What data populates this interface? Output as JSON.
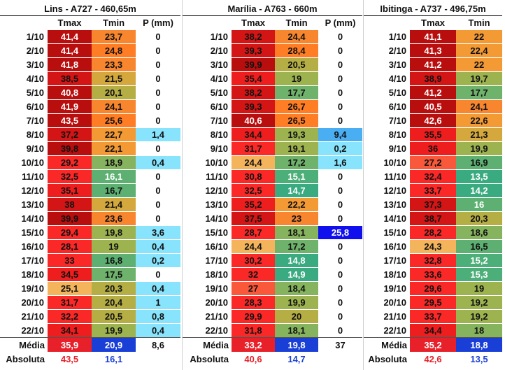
{
  "colors": {
    "tmax_scale": [
      "#f4b05a",
      "#fb2a2a",
      "#d81414",
      "#b80d0d",
      "#c0191a"
    ],
    "tmin_scale": [
      "#3fae79",
      "#6fb26c",
      "#93b455",
      "#b7a840",
      "#e9a23a",
      "#f6812e",
      "#ff7e24"
    ],
    "precip_light": "#88e4fd",
    "precip_mid": "#4aaef2",
    "precip_high": "#1010f0",
    "media_tmax": "#e8202a",
    "media_tmin": "#1a3fd6"
  },
  "stations": [
    {
      "title": "Lins - A727 - 460,65m",
      "headers": [
        "Tmax",
        "Tmin",
        "P (mm)"
      ],
      "rows": [
        {
          "date": "1/10",
          "tmax": "41,4",
          "tmin": "23,7",
          "p": "0"
        },
        {
          "date": "2/10",
          "tmax": "41,4",
          "tmin": "24,8",
          "p": "0"
        },
        {
          "date": "3/10",
          "tmax": "41,8",
          "tmin": "23,3",
          "p": "0"
        },
        {
          "date": "4/10",
          "tmax": "38,5",
          "tmin": "21,5",
          "p": "0"
        },
        {
          "date": "5/10",
          "tmax": "40,8",
          "tmin": "20,1",
          "p": "0"
        },
        {
          "date": "6/10",
          "tmax": "41,9",
          "tmin": "24,1",
          "p": "0"
        },
        {
          "date": "7/10",
          "tmax": "43,5",
          "tmin": "25,6",
          "p": "0"
        },
        {
          "date": "8/10",
          "tmax": "37,2",
          "tmin": "22,7",
          "p": "1,4"
        },
        {
          "date": "9/10",
          "tmax": "39,8",
          "tmin": "22,1",
          "p": "0"
        },
        {
          "date": "10/10",
          "tmax": "29,2",
          "tmin": "18,9",
          "p": "0,4"
        },
        {
          "date": "11/10",
          "tmax": "32,5",
          "tmin": "16,1",
          "p": "0"
        },
        {
          "date": "12/10",
          "tmax": "35,1",
          "tmin": "16,7",
          "p": "0"
        },
        {
          "date": "13/10",
          "tmax": "38",
          "tmin": "21,4",
          "p": "0"
        },
        {
          "date": "14/10",
          "tmax": "39,9",
          "tmin": "23,6",
          "p": "0"
        },
        {
          "date": "15/10",
          "tmax": "29,4",
          "tmin": "19,8",
          "p": "3,6"
        },
        {
          "date": "16/10",
          "tmax": "28,1",
          "tmin": "19",
          "p": "0,4"
        },
        {
          "date": "17/10",
          "tmax": "33",
          "tmin": "16,8",
          "p": "0,2"
        },
        {
          "date": "18/10",
          "tmax": "34,5",
          "tmin": "17,5",
          "p": "0"
        },
        {
          "date": "19/10",
          "tmax": "25,1",
          "tmin": "20,3",
          "p": "0,4"
        },
        {
          "date": "20/10",
          "tmax": "31,7",
          "tmin": "20,4",
          "p": "1"
        },
        {
          "date": "21/10",
          "tmax": "32,2",
          "tmin": "20,5",
          "p": "0,8"
        },
        {
          "date": "22/10",
          "tmax": "34,1",
          "tmin": "19,9",
          "p": "0,4"
        }
      ],
      "media_label": "Média",
      "media": {
        "tmax": "35,9",
        "tmin": "20,9",
        "p": "8,6"
      },
      "abs_label": "Absoluta",
      "abs": {
        "tmax": "43,5",
        "tmin": "16,1"
      }
    },
    {
      "title": "Marília - A763 - 660m",
      "headers": [
        "Tmax",
        "Tmin",
        "P (mm)"
      ],
      "rows": [
        {
          "date": "1/10",
          "tmax": "38,2",
          "tmin": "24,4",
          "p": "0"
        },
        {
          "date": "2/10",
          "tmax": "39,3",
          "tmin": "28,4",
          "p": "0"
        },
        {
          "date": "3/10",
          "tmax": "39,9",
          "tmin": "20,5",
          "p": "0"
        },
        {
          "date": "4/10",
          "tmax": "35,4",
          "tmin": "19",
          "p": "0"
        },
        {
          "date": "5/10",
          "tmax": "38,2",
          "tmin": "17,7",
          "p": "0"
        },
        {
          "date": "6/10",
          "tmax": "39,3",
          "tmin": "26,7",
          "p": "0"
        },
        {
          "date": "7/10",
          "tmax": "40,6",
          "tmin": "26,5",
          "p": "0"
        },
        {
          "date": "8/10",
          "tmax": "34,4",
          "tmin": "19,3",
          "p": "9,4"
        },
        {
          "date": "9/10",
          "tmax": "31,7",
          "tmin": "19,1",
          "p": "0,2"
        },
        {
          "date": "10/10",
          "tmax": "24,4",
          "tmin": "17,2",
          "p": "1,6"
        },
        {
          "date": "11/10",
          "tmax": "30,8",
          "tmin": "15,1",
          "p": "0"
        },
        {
          "date": "12/10",
          "tmax": "32,5",
          "tmin": "14,7",
          "p": "0"
        },
        {
          "date": "13/10",
          "tmax": "35,2",
          "tmin": "22,2",
          "p": "0"
        },
        {
          "date": "14/10",
          "tmax": "37,5",
          "tmin": "23",
          "p": "0"
        },
        {
          "date": "15/10",
          "tmax": "28,7",
          "tmin": "18,1",
          "p": "25,8"
        },
        {
          "date": "16/10",
          "tmax": "24,4",
          "tmin": "17,2",
          "p": "0"
        },
        {
          "date": "17/10",
          "tmax": "30,2",
          "tmin": "14,8",
          "p": "0"
        },
        {
          "date": "18/10",
          "tmax": "32",
          "tmin": "14,9",
          "p": "0"
        },
        {
          "date": "19/10",
          "tmax": "27",
          "tmin": "18,4",
          "p": "0"
        },
        {
          "date": "20/10",
          "tmax": "28,3",
          "tmin": "19,9",
          "p": "0"
        },
        {
          "date": "21/10",
          "tmax": "29,9",
          "tmin": "20",
          "p": "0"
        },
        {
          "date": "22/10",
          "tmax": "31,8",
          "tmin": "18,1",
          "p": "0"
        }
      ],
      "media_label": "Média",
      "media": {
        "tmax": "33,2",
        "tmin": "19,8",
        "p": "37"
      },
      "abs_label": "Absoluta",
      "abs": {
        "tmax": "40,6",
        "tmin": "14,7"
      }
    },
    {
      "title": "Ibitinga - A737 - 496,75m",
      "headers": [
        "Tmax",
        "Tmin"
      ],
      "rows": [
        {
          "date": "1/10",
          "tmax": "41,1",
          "tmin": "22"
        },
        {
          "date": "2/10",
          "tmax": "41,3",
          "tmin": "22,4"
        },
        {
          "date": "3/10",
          "tmax": "41,2",
          "tmin": "22"
        },
        {
          "date": "4/10",
          "tmax": "38,9",
          "tmin": "19,7"
        },
        {
          "date": "5/10",
          "tmax": "41,2",
          "tmin": "17,7"
        },
        {
          "date": "6/10",
          "tmax": "40,5",
          "tmin": "24,1"
        },
        {
          "date": "7/10",
          "tmax": "42,6",
          "tmin": "22,6"
        },
        {
          "date": "8/10",
          "tmax": "35,5",
          "tmin": "21,3"
        },
        {
          "date": "9/10",
          "tmax": "36",
          "tmin": "19,9"
        },
        {
          "date": "10/10",
          "tmax": "27,2",
          "tmin": "16,9"
        },
        {
          "date": "11/10",
          "tmax": "32,4",
          "tmin": "13,5"
        },
        {
          "date": "12/10",
          "tmax": "33,7",
          "tmin": "14,2"
        },
        {
          "date": "13/10",
          "tmax": "37,3",
          "tmin": "16"
        },
        {
          "date": "14/10",
          "tmax": "38,7",
          "tmin": "20,3"
        },
        {
          "date": "15/10",
          "tmax": "28,2",
          "tmin": "18,6"
        },
        {
          "date": "16/10",
          "tmax": "24,3",
          "tmin": "16,5"
        },
        {
          "date": "17/10",
          "tmax": "32,8",
          "tmin": "15,2"
        },
        {
          "date": "18/10",
          "tmax": "33,6",
          "tmin": "15,3"
        },
        {
          "date": "19/10",
          "tmax": "29,6",
          "tmin": "19"
        },
        {
          "date": "20/10",
          "tmax": "29,5",
          "tmin": "19,2"
        },
        {
          "date": "21/10",
          "tmax": "33,7",
          "tmin": "19,2"
        },
        {
          "date": "22/10",
          "tmax": "34,4",
          "tmin": "18"
        }
      ],
      "media_label": "Média",
      "media": {
        "tmax": "35,2",
        "tmin": "18,8"
      },
      "abs_label": "Absoluta",
      "abs": {
        "tmax": "42,6",
        "tmin": "13,5"
      }
    }
  ]
}
